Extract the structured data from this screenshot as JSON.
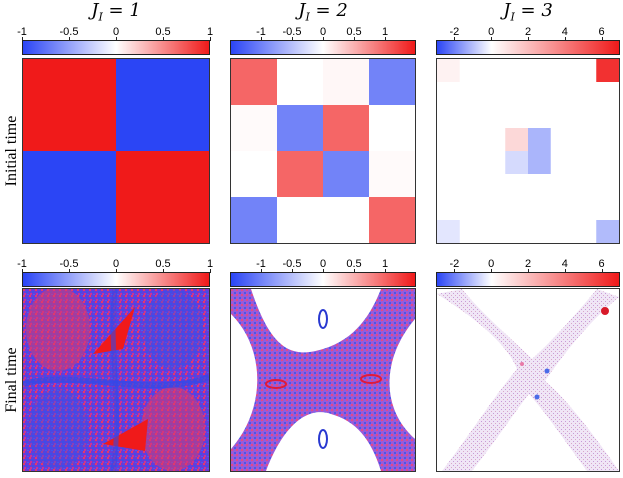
{
  "columns": [
    {
      "title": "J",
      "subscript": "I",
      "equals": " = 1",
      "value": 1,
      "colorbar": {
        "min": -1,
        "max": 1,
        "ticks": [
          "-1",
          "-0.5",
          "0",
          "0.5",
          "1"
        ],
        "tick_values": [
          -1,
          -0.5,
          0,
          0.5,
          1
        ]
      }
    },
    {
      "title": "J",
      "subscript": "I",
      "equals": " = 2",
      "value": 2,
      "colorbar": {
        "min": -1.5,
        "max": 1.5,
        "ticks": [
          "-1",
          "-0.5",
          "0",
          "0.5",
          "1"
        ],
        "tick_values": [
          -1,
          -0.5,
          0,
          0.5,
          1
        ]
      }
    },
    {
      "title": "J",
      "subscript": "I",
      "equals": " = 3",
      "value": 3,
      "colorbar": {
        "min": -3,
        "max": 7,
        "ticks": [
          "-2",
          "0",
          "2",
          "4",
          "6"
        ],
        "tick_values": [
          -2,
          0,
          2,
          4,
          6
        ]
      }
    }
  ],
  "rows": [
    {
      "label": "Initial time"
    },
    {
      "label": "Final time"
    }
  ],
  "colormap": {
    "negative": "#2b45f5",
    "zero": "#ffffff",
    "positive": "#f01a1a"
  },
  "chart_data": [
    {
      "type": "heatmap",
      "panel": "J_I=1 initial",
      "grid": [
        [
          1,
          -1
        ],
        [
          -1,
          1
        ]
      ]
    },
    {
      "type": "heatmap",
      "panel": "J_I=2 initial",
      "grid": [
        [
          1,
          0,
          0.05,
          -1
        ],
        [
          0.03,
          -1,
          1,
          0
        ],
        [
          0,
          1,
          -1,
          0.03
        ],
        [
          -1,
          0,
          0,
          1
        ]
      ]
    },
    {
      "type": "heatmap",
      "panel": "J_I=3 initial",
      "grid": [
        [
          0.4,
          0,
          0,
          0,
          0,
          0,
          0,
          6.3
        ],
        [
          0,
          0,
          0,
          0,
          0,
          0,
          0,
          0
        ],
        [
          0,
          0,
          0,
          0,
          0,
          0,
          0,
          0
        ],
        [
          0,
          0,
          0,
          1.2,
          -1.2,
          0,
          0,
          0
        ],
        [
          0,
          0,
          0,
          -0.6,
          -1.2,
          0,
          0,
          0
        ],
        [
          0,
          0,
          0,
          0,
          0,
          0,
          0,
          0
        ],
        [
          0,
          0,
          0,
          0,
          0,
          0,
          0,
          0
        ],
        [
          -0.4,
          0,
          0,
          0,
          0,
          0,
          0,
          -1.1
        ]
      ]
    }
  ]
}
